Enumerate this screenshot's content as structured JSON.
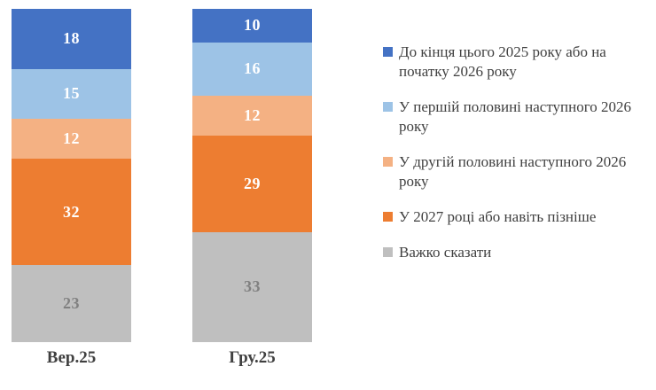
{
  "chart_data": {
    "type": "bar",
    "stacked": true,
    "orientation": "vertical",
    "categories": [
      "Вер.25",
      "Гру.25"
    ],
    "series": [
      {
        "name": "До кінця цього 2025 року або на початку 2026 року",
        "color": "#4472C4",
        "label_color": "#FFFFFF",
        "values": [
          18,
          10
        ]
      },
      {
        "name": "У першій половині наступного 2026 року",
        "color": "#9DC3E6",
        "label_color": "#FFFFFF",
        "values": [
          15,
          16
        ]
      },
      {
        "name": "У другій половині наступного 2026 року",
        "color": "#F4B183",
        "label_color": "#FFFFFF",
        "values": [
          12,
          12
        ]
      },
      {
        "name": "У 2027 році або навіть пізніше",
        "color": "#ED7D31",
        "label_color": "#FFFFFF",
        "values": [
          32,
          29
        ]
      },
      {
        "name": "Важко сказати",
        "color": "#BFBFBF",
        "label_color": "#808080",
        "values": [
          23,
          33
        ]
      }
    ],
    "ylim": [
      0,
      100
    ],
    "grid": false,
    "legend_position": "right",
    "title": "",
    "xlabel": "",
    "ylabel": "",
    "axis_label_color": "#404040",
    "legend_text_color": "#404040",
    "background_color": "#FFFFFF"
  }
}
